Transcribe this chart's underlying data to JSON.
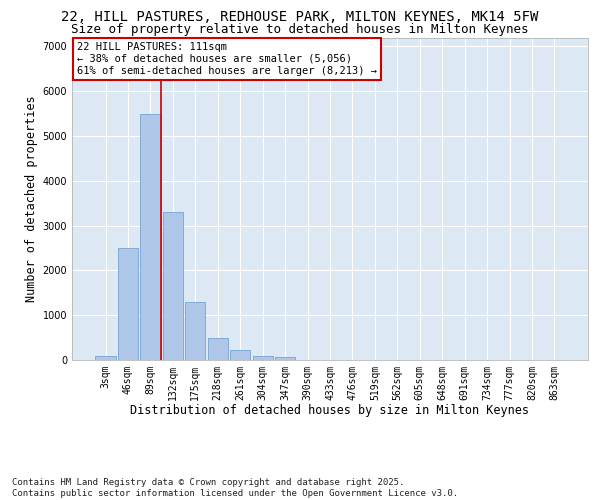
{
  "title_line1": "22, HILL PASTURES, REDHOUSE PARK, MILTON KEYNES, MK14 5FW",
  "title_line2": "Size of property relative to detached houses in Milton Keynes",
  "xlabel": "Distribution of detached houses by size in Milton Keynes",
  "ylabel": "Number of detached properties",
  "categories": [
    "3sqm",
    "46sqm",
    "89sqm",
    "132sqm",
    "175sqm",
    "218sqm",
    "261sqm",
    "304sqm",
    "347sqm",
    "390sqm",
    "433sqm",
    "476sqm",
    "519sqm",
    "562sqm",
    "605sqm",
    "648sqm",
    "691sqm",
    "734sqm",
    "777sqm",
    "820sqm",
    "863sqm"
  ],
  "values": [
    100,
    2500,
    5500,
    3300,
    1300,
    500,
    220,
    100,
    60,
    0,
    0,
    0,
    0,
    0,
    0,
    0,
    0,
    0,
    0,
    0,
    0
  ],
  "bar_color": "#aec6e8",
  "bar_edge_color": "#6699cc",
  "vline_color": "#cc0000",
  "vline_x_index": 2,
  "annotation_text": "22 HILL PASTURES: 111sqm\n← 38% of detached houses are smaller (5,056)\n61% of semi-detached houses are larger (8,213) →",
  "annotation_box_edgecolor": "#cc0000",
  "ylim": [
    0,
    7200
  ],
  "yticks": [
    0,
    1000,
    2000,
    3000,
    4000,
    5000,
    6000,
    7000
  ],
  "background_color": "#dce9f5",
  "grid_color": "#ffffff",
  "footer_line1": "Contains HM Land Registry data © Crown copyright and database right 2025.",
  "footer_line2": "Contains public sector information licensed under the Open Government Licence v3.0.",
  "title_fontsize": 10,
  "subtitle_fontsize": 9,
  "axis_label_fontsize": 8.5,
  "tick_fontsize": 7,
  "annotation_fontsize": 7.5,
  "footer_fontsize": 6.5
}
